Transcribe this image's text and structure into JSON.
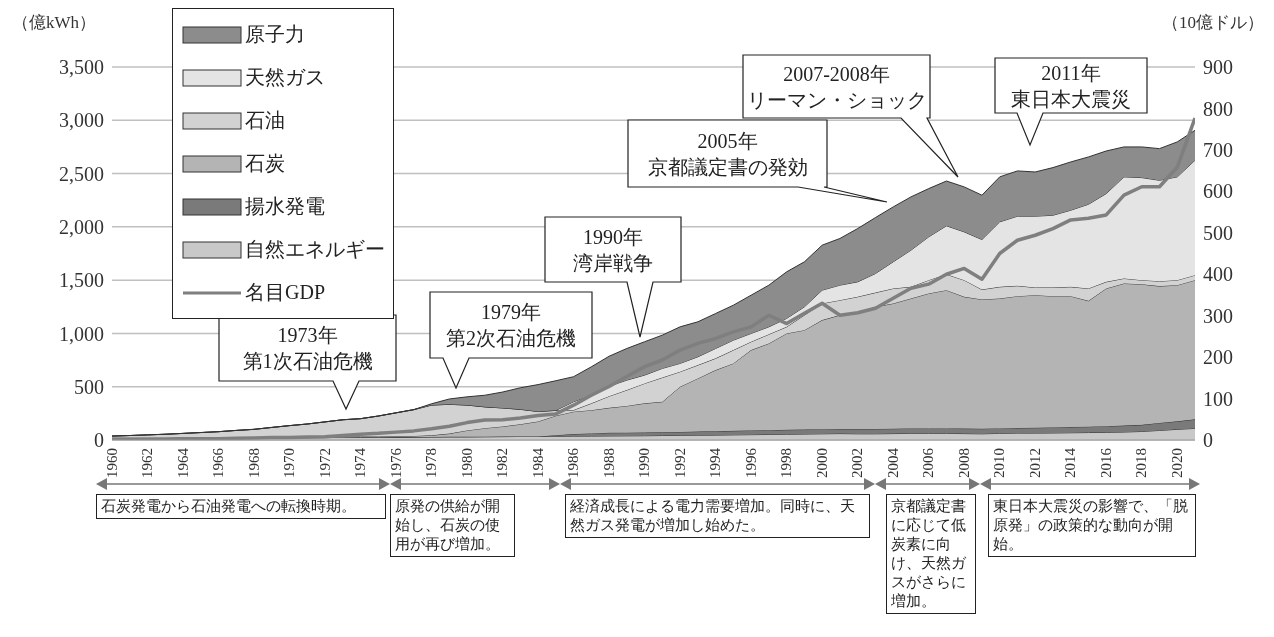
{
  "chart_data": {
    "type": "area",
    "stacked": true,
    "grid": "y",
    "legend": "top left",
    "ylabel": "（億kWh）",
    "y2label": "（10億ドル）",
    "x": [
      1960,
      1961,
      1962,
      1963,
      1964,
      1965,
      1966,
      1967,
      1968,
      1969,
      1970,
      1971,
      1972,
      1973,
      1974,
      1975,
      1976,
      1977,
      1978,
      1979,
      1980,
      1981,
      1982,
      1983,
      1984,
      1985,
      1986,
      1987,
      1988,
      1989,
      1990,
      1991,
      1992,
      1993,
      1994,
      1995,
      1996,
      1997,
      1998,
      1999,
      2000,
      2001,
      2002,
      2003,
      2004,
      2005,
      2006,
      2007,
      2008,
      2009,
      2010,
      2011,
      2012,
      2013,
      2014,
      2015,
      2016,
      2017,
      2018,
      2019,
      2020,
      2021
    ],
    "xlim": [
      1960,
      2021
    ],
    "xticks": [
      1960,
      1962,
      1964,
      1966,
      1968,
      1970,
      1972,
      1974,
      1976,
      1978,
      1980,
      1982,
      1984,
      1986,
      1988,
      1990,
      1992,
      1994,
      1996,
      1998,
      2000,
      2002,
      2004,
      2006,
      2008,
      2010,
      2012,
      2014,
      2016,
      2018,
      2020
    ],
    "ylim": [
      0,
      3500
    ],
    "yticks": [
      0,
      {
        "value": 500,
        "label": "500"
      },
      {
        "value": 1000,
        "label": "1,000"
      },
      {
        "value": 1500,
        "label": "1,500"
      },
      {
        "value": 2000,
        "label": "2,000"
      },
      {
        "value": 2500,
        "label": "2,500"
      },
      {
        "value": 3000,
        "label": "3,000"
      },
      {
        "value": 3500,
        "label": "3,500"
      }
    ],
    "y2lim": [
      0,
      900
    ],
    "y2ticks": [
      0,
      100,
      200,
      300,
      400,
      500,
      600,
      700,
      800,
      900
    ],
    "series": [
      {
        "name": "自然エネルギー",
        "color": "#c8c8c8",
        "values": [
          15,
          15,
          16,
          17,
          18,
          18,
          19,
          20,
          20,
          21,
          22,
          22,
          23,
          24,
          25,
          26,
          27,
          28,
          29,
          30,
          30,
          31,
          32,
          33,
          34,
          35,
          36,
          37,
          38,
          39,
          40,
          42,
          44,
          45,
          46,
          48,
          50,
          52,
          54,
          56,
          58,
          60,
          58,
          58,
          60,
          62,
          62,
          62,
          60,
          58,
          62,
          65,
          65,
          66,
          68,
          70,
          72,
          75,
          80,
          90,
          100,
          109
        ]
      },
      {
        "name": "揚水発電",
        "color": "#7a7a7a",
        "values": [
          0,
          0,
          0,
          0,
          0,
          0,
          0,
          0,
          0,
          0,
          0,
          0,
          0,
          0,
          0,
          0,
          0,
          0,
          0,
          0,
          0,
          0,
          0,
          0,
          0,
          10,
          20,
          25,
          30,
          30,
          30,
          30,
          32,
          34,
          36,
          38,
          40,
          40,
          42,
          42,
          44,
          44,
          46,
          46,
          46,
          47,
          47,
          47,
          47,
          48,
          47,
          48,
          50,
          52,
          54,
          55,
          58,
          60,
          62,
          70,
          75,
          85
        ]
      },
      {
        "name": "石炭",
        "color": "#b4b4b4",
        "values": [
          5,
          5,
          5,
          5,
          5,
          5,
          6,
          6,
          6,
          6,
          7,
          7,
          7,
          8,
          8,
          8,
          9,
          10,
          15,
          30,
          60,
          80,
          95,
          115,
          140,
          183,
          210,
          218,
          234,
          251,
          274,
          287,
          424,
          499,
          574,
          633,
          754,
          814,
          904,
          933,
          1023,
          1068,
          1099,
          1146,
          1175,
          1219,
          1266,
          1297,
          1237,
          1213,
          1219,
          1237,
          1244,
          1232,
          1228,
          1181,
          1292,
          1334,
          1320,
          1284,
          1278,
          1306
        ]
      },
      {
        "name": "石油",
        "color": "#d2d2d2",
        "values": [
          17,
          22,
          27,
          32,
          39,
          47,
          53,
          64,
          74,
          91,
          106,
          121,
          140,
          158,
          167,
          191,
          219,
          247,
          284,
          275,
          238,
          200,
          174,
          140,
          94,
          50,
          15,
          64,
          109,
          149,
          187,
          227,
          141,
          125,
          110,
          125,
          78,
          86,
          62,
          141,
          156,
          140,
          141,
          133,
          141,
          109,
          125,
          149,
          156,
          93,
          109,
          97,
          72,
          81,
          87,
          116,
          62,
          47,
          38,
          46,
          47,
          47
        ]
      },
      {
        "name": "天然ガス",
        "color": "#e4e4e4",
        "values": [
          0,
          0,
          0,
          0,
          0,
          0,
          0,
          0,
          0,
          0,
          0,
          0,
          0,
          0,
          0,
          0,
          0,
          0,
          0,
          0,
          0,
          0,
          0,
          0,
          0,
          0,
          78,
          78,
          94,
          93,
          78,
          86,
          78,
          78,
          93,
          93,
          78,
          70,
          79,
          78,
          125,
          141,
          140,
          179,
          250,
          344,
          406,
          455,
          453,
          469,
          610,
          653,
          669,
          678,
          719,
          790,
          828,
          953,
          962,
          947,
          969,
          1078
        ]
      },
      {
        "name": "原子力",
        "color": "#8c8c8c",
        "values": [
          0,
          0,
          0,
          0,
          0,
          0,
          0,
          0,
          0,
          0,
          0,
          0,
          0,
          0,
          0,
          0,
          0,
          0,
          12,
          50,
          77,
          109,
          149,
          202,
          252,
          278,
          235,
          265,
          281,
          297,
          313,
          312,
          343,
          328,
          328,
          328,
          359,
          391,
          437,
          422,
          422,
          438,
          500,
          525,
          515,
          500,
          453,
          420,
          422,
          416,
          422,
          425,
          415,
          447,
          453,
          444,
          400,
          281,
          288,
          297,
          328,
          281
        ]
      },
      {
        "name": "名目GDP",
        "type": "line",
        "axis": "y2",
        "color": "#7f7f7f",
        "values": [
          2,
          2,
          2,
          2,
          3,
          3,
          3,
          4,
          5,
          6,
          6,
          7,
          8,
          11,
          14,
          16,
          19,
          22,
          27,
          33,
          42,
          48,
          49,
          53,
          59,
          63,
          84,
          108,
          129,
          153,
          177,
          193,
          217,
          233,
          245,
          261,
          273,
          301,
          281,
          306,
          330,
          301,
          307,
          318,
          342,
          366,
          376,
          400,
          414,
          388,
          450,
          482,
          494,
          510,
          531,
          535,
          543,
          591,
          611,
          611,
          658,
          777
        ]
      }
    ],
    "annotations": [
      "1973年第1次石油危機",
      "1979年第2次石油危機",
      "1990年湾岸戦争",
      "2005年京都議定書の発効",
      "2007-2008年リーマン・ショック",
      "2011年東日本大震災",
      "石炭発電から石油発電への転換時期。",
      "原発の供給が開始し、石炭の使用が再び増加。",
      "経済成長による電力需要増加。同時に、天然ガス発電が増加し始めた。",
      "京都議定書に応じて低炭素に向け、天然ガスがさらに増加。",
      "東日本大震災の影響で、「脱原発」の政策的な動向が開始。"
    ]
  }
}
